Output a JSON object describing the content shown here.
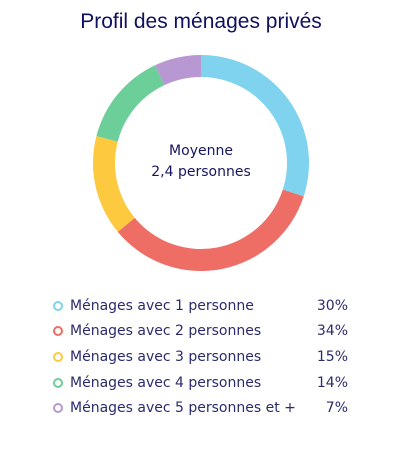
{
  "chart_data": {
    "type": "pie",
    "title": "Profil des ménages privés",
    "center_label": [
      "Moyenne",
      "2,4 personnes"
    ],
    "slices": [
      {
        "label": "Ménages avec 1 personne",
        "value": 30,
        "display": "30%",
        "color": "#7fd3ef"
      },
      {
        "label": "Ménages avec 2 personnes",
        "value": 34,
        "display": "34%",
        "color": "#ee6d65"
      },
      {
        "label": "Ménages avec 3 personnes",
        "value": 15,
        "display": "15%",
        "color": "#fdc93f"
      },
      {
        "label": "Ménages avec 4 personnes",
        "value": 14,
        "display": "14%",
        "color": "#6ccf9a"
      },
      {
        "label": "Ménages avec 5 personnes et +",
        "value": 7,
        "display": "7%",
        "color": "#b898d2"
      }
    ],
    "legend_position": "bottom"
  }
}
